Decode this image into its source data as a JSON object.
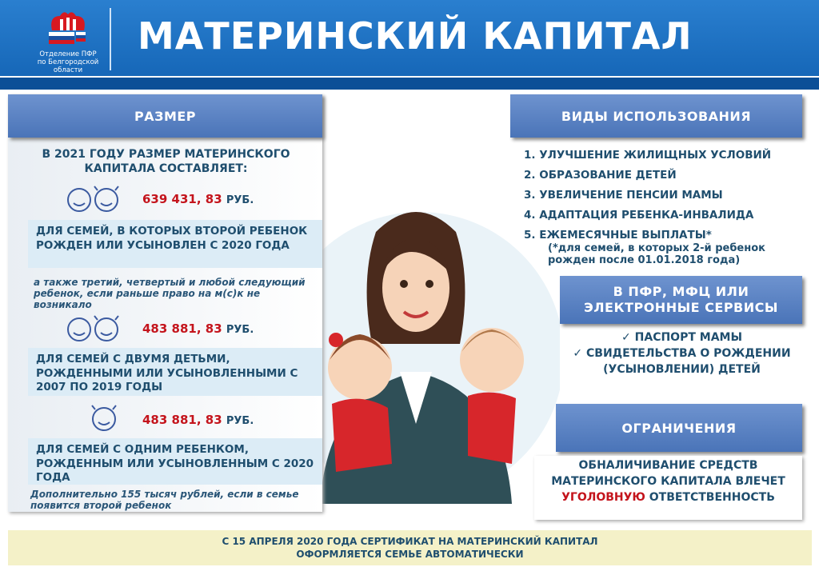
{
  "header": {
    "logo_text_1": "Отделение ПФР",
    "logo_text_2": "по Белгородской области",
    "title": "МАТЕРИНСКИЙ КАПИТАЛ"
  },
  "size": {
    "heading": "РАЗМЕР",
    "intro": "В 2021 ГОДУ РАЗМЕР МАТЕРИНСКОГО КАПИТАЛА СОСТАВЛЯЕТ:",
    "currency": "РУБ.",
    "tiers": [
      {
        "amount": "639 431, 83",
        "icon": "boy-girl-faces-icon",
        "desc": "ДЛЯ СЕМЕЙ, В КОТОРЫХ ВТОРОЙ РЕБЕНОК РОЖДЕН ИЛИ УСЫНОВЛЕН С 2020 ГОДА",
        "note": "а также третий, четвертый и любой следующий ребенок, если раньше право на м(с)к не возникало"
      },
      {
        "amount": "483 881, 83",
        "icon": "boy-girl-faces-icon",
        "desc": "ДЛЯ СЕМЕЙ С ДВУМЯ ДЕТЬМИ, РОЖДЕННЫМИ ИЛИ УСЫНОВЛЕННЫМИ С 2007 ПО 2019 ГОДЫ"
      },
      {
        "amount": "483 881, 83",
        "icon": "girl-face-icon",
        "desc": "ДЛЯ СЕМЕЙ С ОДНИМ РЕБЕНКОМ, РОЖДЕННЫМ ИЛИ УСЫНОВЛЕННЫМ С 2020 ГОДА",
        "note": "Дополнительно 155 тысяч рублей, если в семье появится второй ребенок"
      }
    ]
  },
  "uses": {
    "heading": "ВИДЫ ИСПОЛЬЗОВАНИЯ",
    "items": [
      "1. УЛУЧШЕНИЕ ЖИЛИЩНЫХ УСЛОВИЙ",
      "2. ОБРАЗОВАНИЕ ДЕТЕЙ",
      "3. УВЕЛИЧЕНИЕ ПЕНСИИ МАМЫ",
      "4. АДАПТАЦИЯ РЕБЕНКА-ИНВАЛИДА",
      "5. ЕЖЕМЕСЯЧНЫЕ ВЫПЛАТЫ*"
    ],
    "footnote": "(*для семей, в которых 2-й ребенок рожден после 01.01.2018 года)"
  },
  "apply": {
    "heading": "В ПФР, МФЦ ИЛИ ЭЛЕКТРОННЫЕ СЕРВИСЫ",
    "docs": [
      "✓ ПАСПОРТ МАМЫ",
      "✓ СВИДЕТЕЛЬСТВА О РОЖДЕНИИ (УСЫНОВЛЕНИИ) ДЕТЕЙ"
    ]
  },
  "limits": {
    "heading": "ОГРАНИЧЕНИЯ",
    "text_1": "ОБНАЛИЧИВАНИЕ СРЕДСТВ МАТЕРИНСКОГО КАПИТАЛА ВЛЕЧЕТ",
    "text_red": "УГОЛОВНУЮ",
    "text_2": "ОТВЕТСТВЕННОСТЬ"
  },
  "footer": "С 15 АПРЕЛЯ 2020 ГОДА СЕРТИФИКАТ НА МАТЕРИНСКИЙ КАПИТАЛ ОФОРМЛЯЕТСЯ СЕМЬЕ АВТОМАТИЧЕСКИ",
  "colors": {
    "header": "#1a6fc0",
    "accent_red": "#c4141c",
    "bar": "#5a80c0"
  }
}
